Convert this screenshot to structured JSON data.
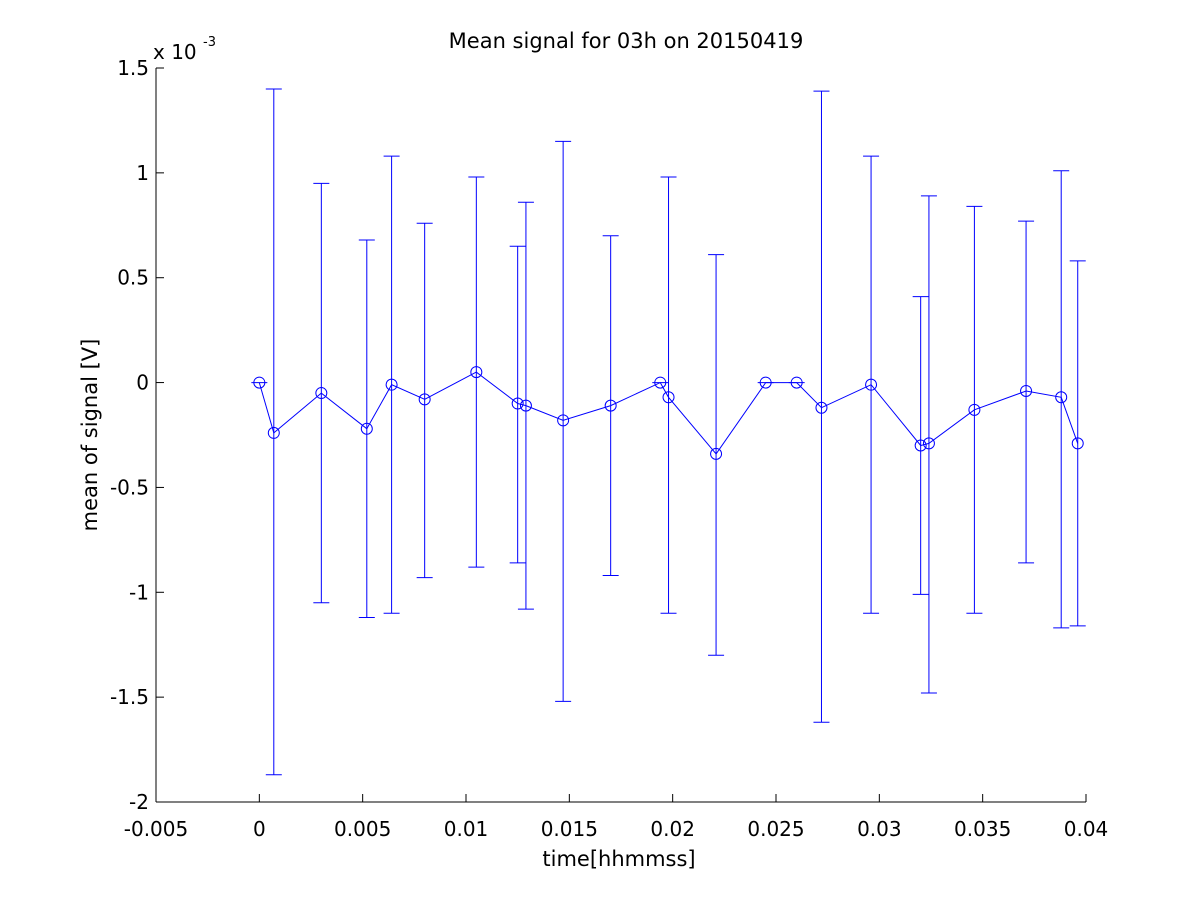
{
  "chart_data": {
    "type": "line",
    "title": "Mean signal for 03h on 20150419",
    "xlabel": "time[hhmmss]",
    "ylabel": "mean of signal [V]",
    "y_exponent_base": "x 10",
    "y_exponent_power": "-3",
    "xlim": [
      -0.005,
      0.04
    ],
    "ylim": [
      -2,
      1.5
    ],
    "x_ticks": [
      -0.005,
      0,
      0.005,
      0.01,
      0.015,
      0.02,
      0.025,
      0.03,
      0.035,
      0.04
    ],
    "x_tick_labels": [
      "-0.005",
      "0",
      "0.005",
      "0.01",
      "0.015",
      "0.02",
      "0.025",
      "0.03",
      "0.035",
      "0.04"
    ],
    "y_ticks": [
      -2,
      -1.5,
      -1,
      -0.5,
      0,
      0.5,
      1,
      1.5
    ],
    "y_tick_labels": [
      "-2",
      "-1.5",
      "-1",
      "-0.5",
      "0",
      "0.5",
      "1",
      "1.5"
    ],
    "grid": false,
    "legend": "none",
    "series_color": "#0000ff",
    "marker": "circle",
    "errorbars": true,
    "points": [
      {
        "x": 0.0,
        "y": 0.0,
        "lo": 0.0,
        "hi": 0.0
      },
      {
        "x": 0.0007,
        "y": -0.24,
        "lo": -1.87,
        "hi": 1.4
      },
      {
        "x": 0.003,
        "y": -0.05,
        "lo": -1.05,
        "hi": 0.95
      },
      {
        "x": 0.0052,
        "y": -0.22,
        "lo": -1.12,
        "hi": 0.68
      },
      {
        "x": 0.0064,
        "y": -0.01,
        "lo": -1.1,
        "hi": 1.08
      },
      {
        "x": 0.008,
        "y": -0.08,
        "lo": -0.93,
        "hi": 0.76
      },
      {
        "x": 0.0105,
        "y": 0.05,
        "lo": -0.88,
        "hi": 0.98
      },
      {
        "x": 0.0125,
        "y": -0.1,
        "lo": -0.86,
        "hi": 0.65
      },
      {
        "x": 0.0129,
        "y": -0.11,
        "lo": -1.08,
        "hi": 0.86
      },
      {
        "x": 0.0147,
        "y": -0.18,
        "lo": -1.52,
        "hi": 1.15
      },
      {
        "x": 0.017,
        "y": -0.11,
        "lo": -0.92,
        "hi": 0.7
      },
      {
        "x": 0.0194,
        "y": 0.0,
        "lo": 0.0,
        "hi": 0.0
      },
      {
        "x": 0.0198,
        "y": -0.07,
        "lo": -1.1,
        "hi": 0.98
      },
      {
        "x": 0.0221,
        "y": -0.34,
        "lo": -1.3,
        "hi": 0.61
      },
      {
        "x": 0.0245,
        "y": 0.0,
        "lo": 0.0,
        "hi": 0.0
      },
      {
        "x": 0.026,
        "y": 0.0,
        "lo": 0.0,
        "hi": 0.0
      },
      {
        "x": 0.0272,
        "y": -0.12,
        "lo": -1.62,
        "hi": 1.39
      },
      {
        "x": 0.0296,
        "y": -0.01,
        "lo": -1.1,
        "hi": 1.08
      },
      {
        "x": 0.032,
        "y": -0.3,
        "lo": -1.01,
        "hi": 0.41
      },
      {
        "x": 0.0324,
        "y": -0.29,
        "lo": -1.48,
        "hi": 0.89
      },
      {
        "x": 0.0346,
        "y": -0.13,
        "lo": -1.1,
        "hi": 0.84
      },
      {
        "x": 0.0371,
        "y": -0.04,
        "lo": -0.86,
        "hi": 0.77
      },
      {
        "x": 0.0388,
        "y": -0.07,
        "lo": -1.17,
        "hi": 1.01
      },
      {
        "x": 0.0396,
        "y": -0.29,
        "lo": -1.16,
        "hi": 0.58
      }
    ]
  }
}
